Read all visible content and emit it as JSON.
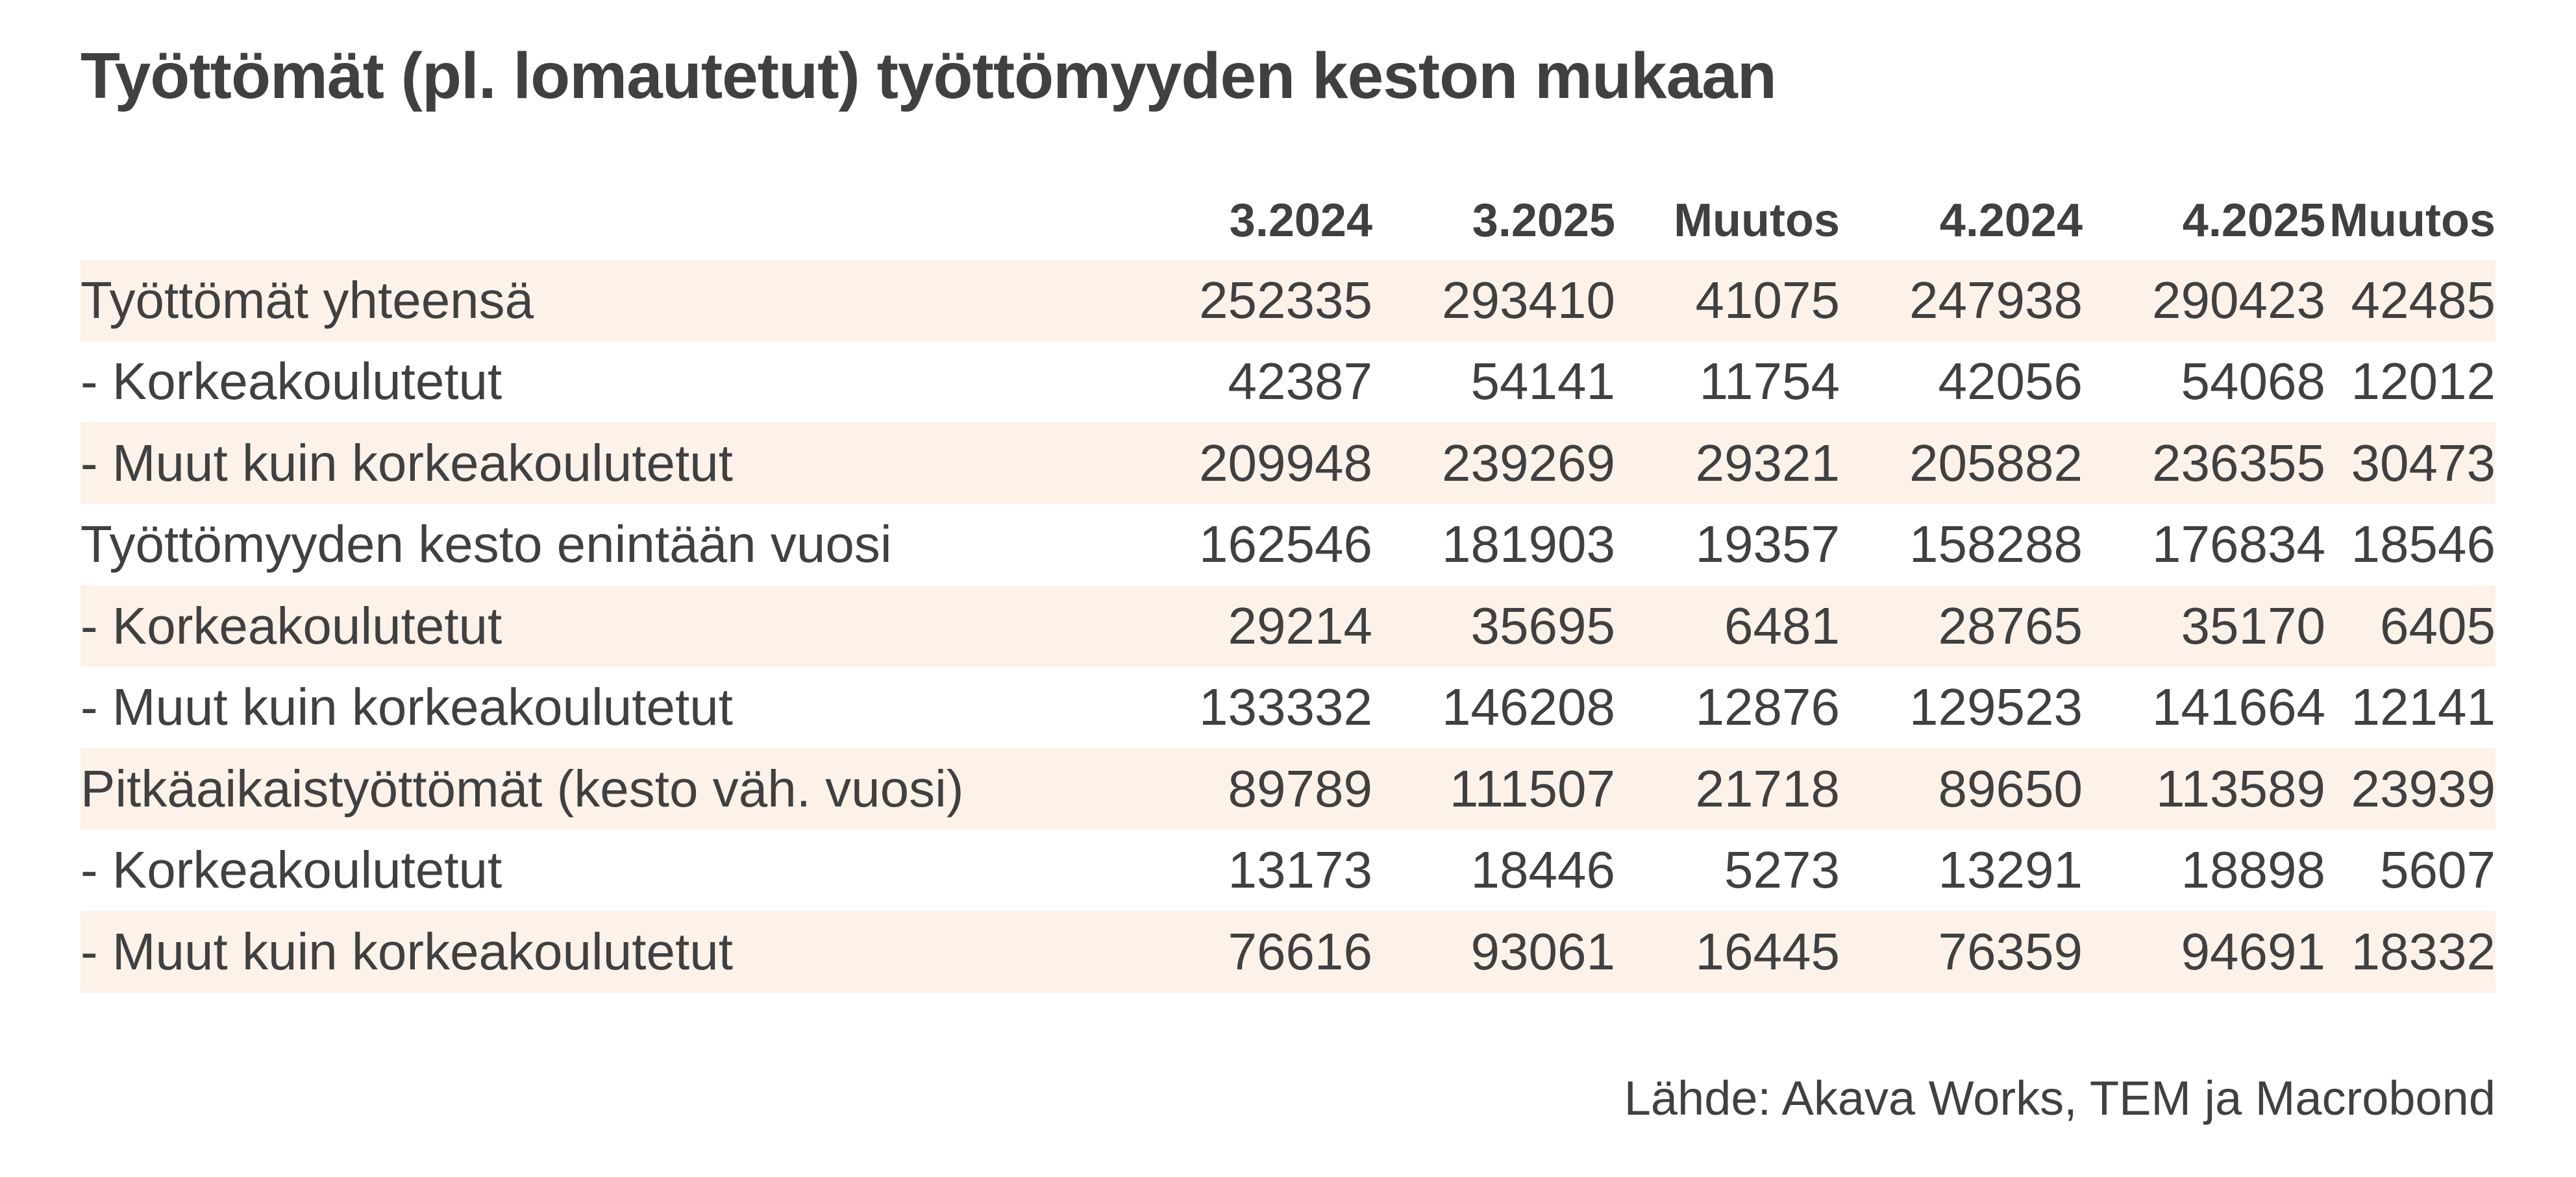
{
  "chart_data": {
    "type": "table",
    "title": "Työttömät (pl. lomautetut) työttömyyden keston mukaan",
    "columns": [
      "",
      "3.2024",
      "3.2025",
      "Muutos",
      "4.2024",
      "4.2025",
      "Muutos"
    ],
    "rows": [
      {
        "label": "Työttömät yhteensä",
        "values": [
          "252335",
          "293410",
          "41075",
          "247938",
          "290423",
          "42485"
        ],
        "shaded": true
      },
      {
        "label": "- Korkeakoulutetut",
        "values": [
          "42387",
          "54141",
          "11754",
          "42056",
          "54068",
          "12012"
        ],
        "shaded": false
      },
      {
        "label": "- Muut kuin korkeakoulutetut",
        "values": [
          "209948",
          "239269",
          "29321",
          "205882",
          "236355",
          "30473"
        ],
        "shaded": true
      },
      {
        "label": "Työttömyyden kesto enintään vuosi",
        "values": [
          "162546",
          "181903",
          "19357",
          "158288",
          "176834",
          "18546"
        ],
        "shaded": false
      },
      {
        "label": "- Korkeakoulutetut",
        "values": [
          "29214",
          "35695",
          "6481",
          "28765",
          "35170",
          "6405"
        ],
        "shaded": true
      },
      {
        "label": "- Muut kuin korkeakoulutetut",
        "values": [
          "133332",
          "146208",
          "12876",
          "129523",
          "141664",
          "12141"
        ],
        "shaded": false
      },
      {
        "label": "Pitkäaikaistyöttömät (kesto väh. vuosi)",
        "values": [
          "89789",
          "111507",
          "21718",
          "89650",
          "113589",
          "23939"
        ],
        "shaded": true
      },
      {
        "label": "- Korkeakoulutetut",
        "values": [
          "13173",
          "18446",
          "5273",
          "13291",
          "18898",
          "5607"
        ],
        "shaded": false
      },
      {
        "label": "- Muut kuin korkeakoulutetut",
        "values": [
          "76616",
          "93061",
          "16445",
          "76359",
          "94691",
          "18332"
        ],
        "shaded": true
      }
    ],
    "source": "Lähde: Akava Works, TEM ja Macrobond",
    "colors": {
      "text": "#404040",
      "row_shade": "#fcf2ea",
      "background": "#ffffff"
    }
  }
}
